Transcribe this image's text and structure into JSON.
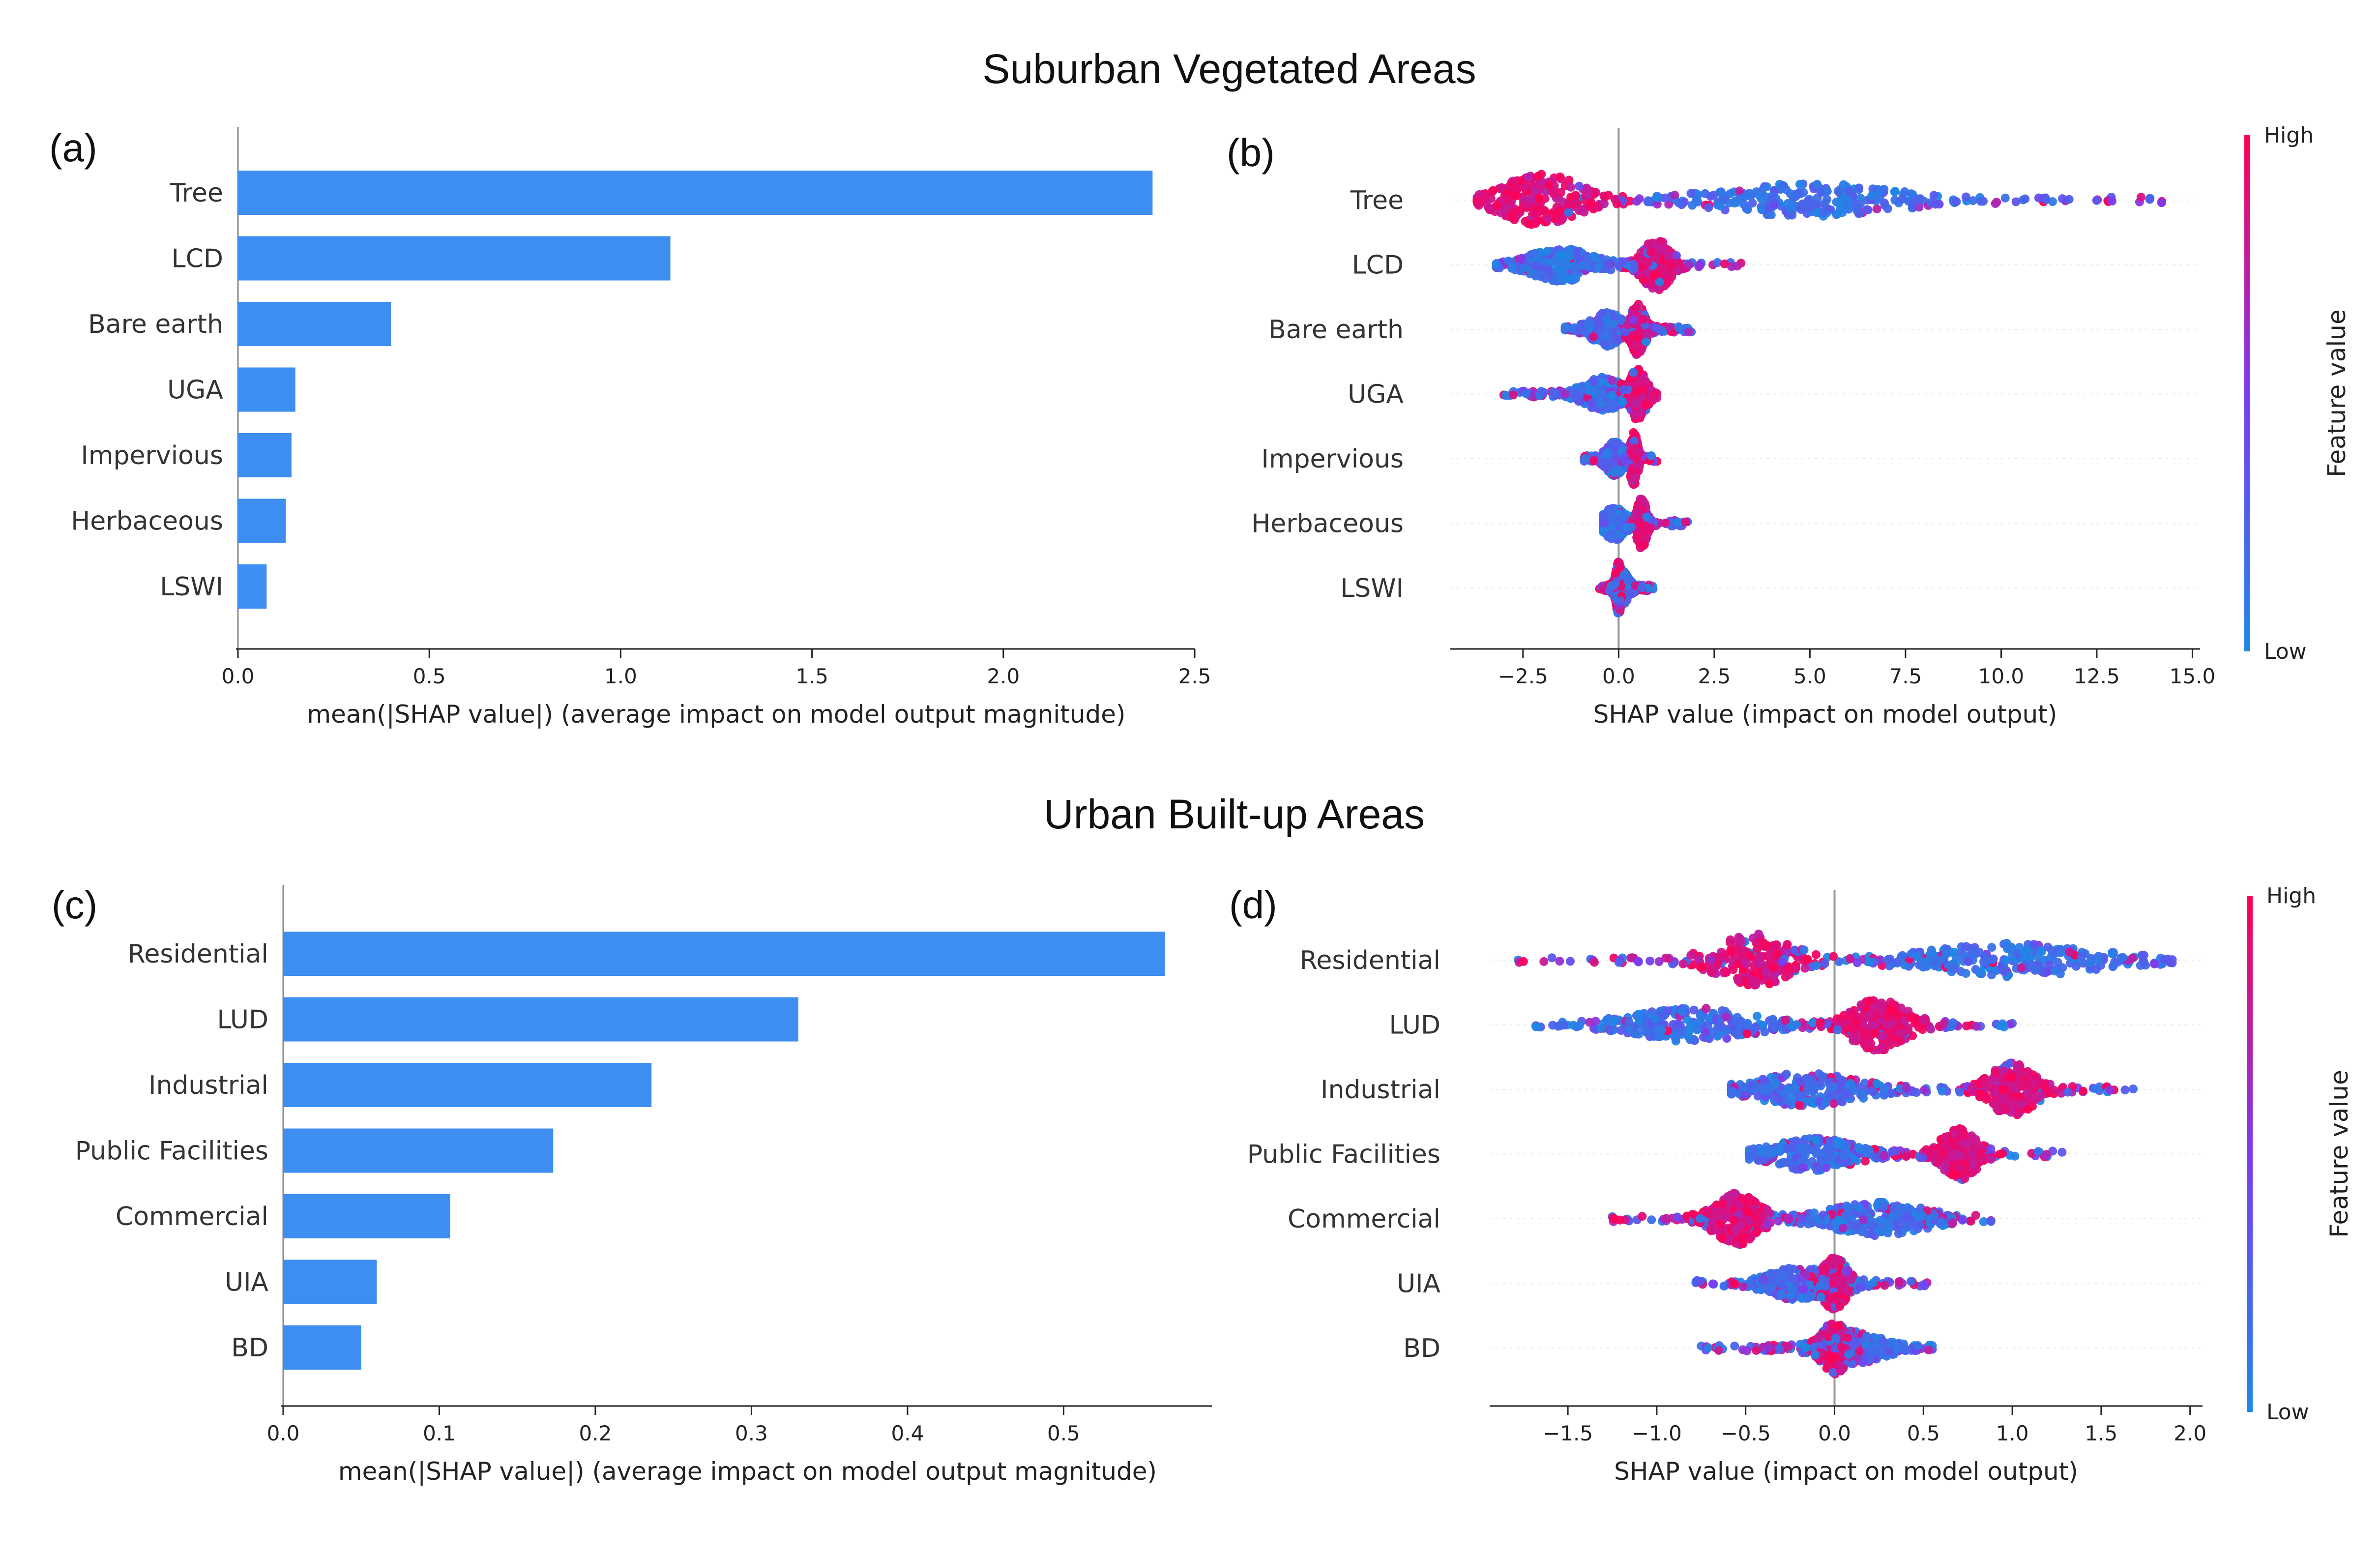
{
  "sections": {
    "top": "Suburban Vegetated Areas",
    "bottom": "Urban Built-up Areas"
  },
  "panel_labels": [
    "(a)",
    "(b)",
    "(c)",
    "(d)"
  ],
  "colorbar": {
    "high": "High",
    "low": "Low",
    "label": "Feature value"
  },
  "colors": {
    "bar": "#3d8ef0",
    "low": "#1e88e5",
    "high": "#ff0052",
    "axis": "#222222",
    "zero_line": "#999999"
  },
  "chart_data": [
    {
      "id": "a",
      "type": "bar",
      "orientation": "horizontal",
      "categories": [
        "Tree",
        "LCD",
        "Bare earth",
        "UGA",
        "Impervious",
        "Herbaceous",
        "LSWI"
      ],
      "values": [
        2.39,
        1.13,
        0.4,
        0.15,
        0.14,
        0.125,
        0.075
      ],
      "xlabel": "mean(|SHAP value|) (average impact on model output magnitude)",
      "xlim": [
        0,
        2.5
      ],
      "xticks": [
        0.0,
        0.5,
        1.0,
        1.5,
        2.0,
        2.5
      ],
      "xtick_labels": [
        "0.0",
        "0.5",
        "1.0",
        "1.5",
        "2.0",
        "2.5"
      ]
    },
    {
      "id": "b",
      "type": "scatter",
      "subtype": "shap-beeswarm",
      "categories": [
        "Tree",
        "LCD",
        "Bare earth",
        "UGA",
        "Impervious",
        "Herbaceous",
        "LSWI"
      ],
      "xlabel": "SHAP value (impact on model output)",
      "xlim": [
        -4.4,
        15.2
      ],
      "xticks": [
        -2.5,
        0.0,
        2.5,
        5.0,
        7.5,
        10.0,
        12.5,
        15.0
      ],
      "xtick_labels": [
        "−2.5",
        "0.0",
        "2.5",
        "5.0",
        "7.5",
        "10.0",
        "12.5",
        "15.0"
      ],
      "series": [
        {
          "feature": "Tree",
          "min": -3.7,
          "max": 14.2,
          "high_center": -2.0,
          "low_center": 5.0
        },
        {
          "feature": "LCD",
          "min": -3.2,
          "max": 3.2,
          "high_center": 1.0,
          "low_center": -1.5
        },
        {
          "feature": "Bare earth",
          "min": -1.4,
          "max": 1.9,
          "high_center": 0.5,
          "low_center": -0.3
        },
        {
          "feature": "UGA",
          "min": -3.0,
          "max": 1.0,
          "high_center": 0.5,
          "low_center": -0.4
        },
        {
          "feature": "Impervious",
          "min": -0.9,
          "max": 1.0,
          "high_center": 0.4,
          "low_center": -0.1
        },
        {
          "feature": "Herbaceous",
          "min": -0.4,
          "max": 1.8,
          "high_center": 0.6,
          "low_center": -0.1
        },
        {
          "feature": "LSWI",
          "min": -0.5,
          "max": 0.9,
          "high_center": 0.0,
          "low_center": 0.1
        }
      ]
    },
    {
      "id": "c",
      "type": "bar",
      "orientation": "horizontal",
      "categories": [
        "Residential",
        "LUD",
        "Industrial",
        "Public Facilities",
        "Commercial",
        "UIA",
        "BD"
      ],
      "values": [
        0.565,
        0.33,
        0.236,
        0.173,
        0.107,
        0.06,
        0.05
      ],
      "xlabel": "mean(|SHAP value|) (average impact on model output magnitude)",
      "xlim": [
        0,
        0.595
      ],
      "xticks": [
        0.0,
        0.1,
        0.2,
        0.3,
        0.4,
        0.5
      ],
      "xtick_labels": [
        "0.0",
        "0.1",
        "0.2",
        "0.3",
        "0.4",
        "0.5"
      ]
    },
    {
      "id": "d",
      "type": "scatter",
      "subtype": "shap-beeswarm",
      "categories": [
        "Residential",
        "LUD",
        "Industrial",
        "Public Facilities",
        "Commercial",
        "UIA",
        "BD"
      ],
      "xlabel": "SHAP value (impact on model output)",
      "xlim": [
        -1.94,
        2.07
      ],
      "xticks": [
        -1.5,
        -1.0,
        -0.5,
        0.0,
        0.5,
        1.0,
        1.5,
        2.0
      ],
      "xtick_labels": [
        "−1.5",
        "−1.0",
        "−0.5",
        "0.0",
        "0.5",
        "1.0",
        "1.5",
        "2.0"
      ],
      "series": [
        {
          "feature": "Residential",
          "min": -1.78,
          "max": 1.9,
          "high_center": -0.45,
          "low_center": 1.0
        },
        {
          "feature": "LUD",
          "min": -1.68,
          "max": 1.0,
          "high_center": 0.25,
          "low_center": -0.8
        },
        {
          "feature": "Industrial",
          "min": -0.58,
          "max": 1.68,
          "high_center": 1.0,
          "low_center": -0.15
        },
        {
          "feature": "Public Facilities",
          "min": -0.48,
          "max": 1.28,
          "high_center": 0.7,
          "low_center": -0.12
        },
        {
          "feature": "Commercial",
          "min": -1.25,
          "max": 0.88,
          "high_center": -0.55,
          "low_center": 0.25
        },
        {
          "feature": "UIA",
          "min": -0.78,
          "max": 0.52,
          "high_center": 0.0,
          "low_center": -0.2
        },
        {
          "feature": "BD",
          "min": -0.75,
          "max": 0.55,
          "high_center": 0.0,
          "low_center": 0.1
        }
      ]
    }
  ]
}
